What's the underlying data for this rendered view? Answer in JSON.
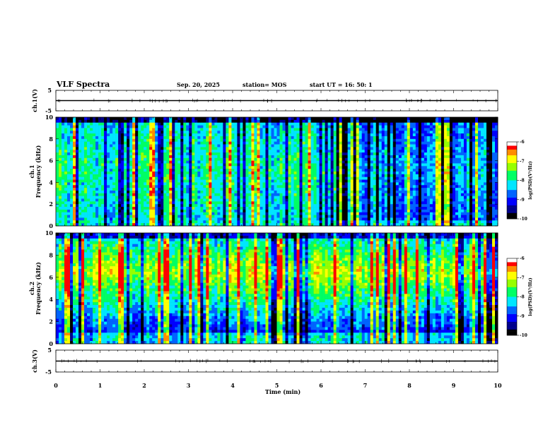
{
  "header": {
    "title": "VLF Spectra",
    "date": "Sep. 20, 2025",
    "station": "station= MOS",
    "start": "start  UT =   16: 50: 1"
  },
  "colors": {
    "palette": [
      "#000000",
      "#00008c",
      "#0000ff",
      "#0064ff",
      "#00e6ff",
      "#00ff64",
      "#96ff00",
      "#ffff00",
      "#ff8c00",
      "#ff0000",
      "#ffffff"
    ]
  },
  "chart_data": [
    {
      "type": "line",
      "id": "ch1-waveform",
      "ylabel": "ch.1(V)",
      "ylim": [
        -5,
        5
      ],
      "yticks": [
        "5",
        "-5"
      ],
      "x": [
        0,
        10
      ],
      "y": [
        0,
        0
      ],
      "xlim": [
        0,
        10
      ]
    },
    {
      "type": "heatmap",
      "id": "ch1-spectrogram",
      "ylabel": "ch.1  Frequency (kHz)",
      "xlim": [
        0,
        10
      ],
      "ylim": [
        0,
        10
      ],
      "yticks": [
        "0",
        "2",
        "4",
        "6",
        "8",
        "10"
      ],
      "colorbar": {
        "label": "log(PSD)(V²/Hz)",
        "range": [
          -10,
          -6
        ],
        "ticks": [
          "-6",
          "-7",
          "-8",
          "-9",
          "-10"
        ]
      },
      "note": "broadband sferic noise 0-9.5 kHz; energy drops after ~6.3 min"
    },
    {
      "type": "heatmap",
      "id": "ch2-spectrogram",
      "ylabel": "ch.2  Frequency (kHz)",
      "xlim": [
        0,
        10
      ],
      "ylim": [
        0,
        10
      ],
      "yticks": [
        "0",
        "2",
        "4",
        "6",
        "8",
        "10"
      ],
      "colorbar": {
        "label": "log(PSD)(V²/Hz)",
        "range": [
          -10,
          -6
        ],
        "ticks": [
          "-6",
          "-7",
          "-8",
          "-9",
          "-10"
        ]
      },
      "note": "strongest band ~5-8 kHz throughout"
    },
    {
      "type": "line",
      "id": "ch3-waveform",
      "ylabel": "ch.3(V)",
      "ylim": [
        -5,
        5
      ],
      "yticks": [
        "5",
        "-5"
      ],
      "x": [
        0,
        10
      ],
      "y": [
        0,
        0
      ],
      "xlim": [
        0,
        10
      ]
    }
  ],
  "xaxis": {
    "label": "Time  (min)",
    "ticks": [
      "0",
      "1",
      "2",
      "3",
      "4",
      "5",
      "6",
      "7",
      "8",
      "9",
      "10"
    ]
  }
}
